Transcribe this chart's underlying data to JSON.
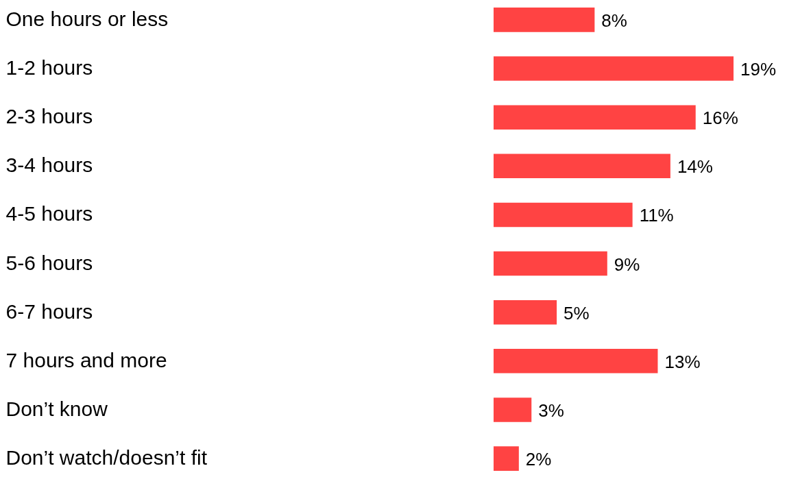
{
  "chart_data": {
    "type": "bar",
    "orientation": "horizontal",
    "categories": [
      "One hours or less",
      "1-2 hours",
      "2-3 hours",
      "3-4 hours",
      "4-5 hours",
      "5-6 hours",
      "6-7 hours",
      "7 hours and more",
      "Don’t know",
      "Don’t watch/doesn’t fit"
    ],
    "values": [
      8,
      19,
      16,
      14,
      11,
      9,
      5,
      13,
      3,
      2
    ],
    "value_labels": [
      "8%",
      "19%",
      "16%",
      "14%",
      "11%",
      "9%",
      "5%",
      "13%",
      "3%",
      "2%"
    ],
    "color": "#ff4343"
  }
}
